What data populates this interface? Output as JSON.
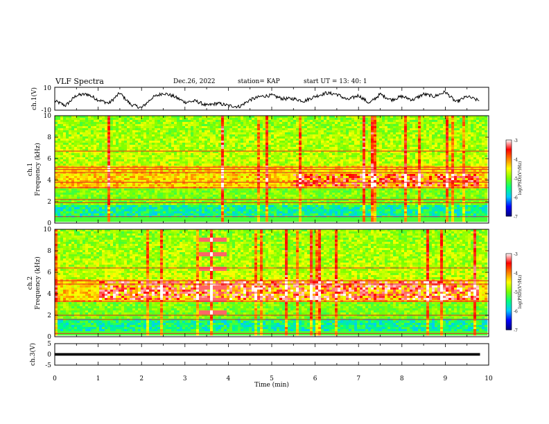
{
  "header": {
    "title": "VLF Spectra",
    "date": "Dec.26, 2022",
    "station": "station= KAP",
    "start": "start  UT  =   13: 40: 1"
  },
  "colors": {
    "spectrum_stops": [
      "#000080",
      "#0000ff",
      "#00c8ff",
      "#00ff80",
      "#7cff00",
      "#ffff00",
      "#ff8000",
      "#ff0000",
      "#ffffff"
    ],
    "trace": "#000000"
  },
  "chart_data": [
    {
      "id": "ch1-waveform",
      "type": "line",
      "ylabel": "ch.1(V)",
      "ylim": [
        -10,
        10
      ],
      "yticks": [
        "10",
        "-10"
      ],
      "xlim": [
        0,
        10
      ],
      "series": [
        {
          "x": [
            0,
            0.25,
            0.5,
            0.75,
            1,
            1.25,
            1.5,
            1.75,
            2,
            2.25,
            2.5,
            2.75,
            3,
            3.25,
            3.5,
            3.75,
            4,
            4.25,
            4.5,
            4.75,
            5,
            5.25,
            5.5,
            5.75,
            6,
            6.25,
            6.5,
            6.75,
            7,
            7.25,
            7.5,
            7.75,
            8,
            8.25,
            8.5,
            8.75,
            9,
            9.25,
            9.5,
            9.8
          ],
          "y": [
            -2,
            -6,
            3,
            4,
            -1,
            -4,
            5,
            -5,
            -8,
            1,
            5,
            2,
            -3,
            -2,
            -6,
            -4,
            -6,
            -7,
            -1,
            2,
            3,
            0,
            0,
            -2,
            2,
            5,
            4,
            -1,
            3,
            -4,
            4,
            -1,
            2,
            -1,
            4,
            2,
            6,
            -3,
            2,
            -2
          ]
        }
      ]
    },
    {
      "id": "ch1-spectrogram",
      "type": "heatmap",
      "ylabel": "ch.1\nFrequency (kHz)",
      "ylim": [
        0,
        10
      ],
      "yticks": [
        "0",
        "2",
        "4",
        "6",
        "8",
        "10"
      ],
      "xlim": [
        0,
        10
      ],
      "colorbar": {
        "label": "log(PSD)(V²/Hz)",
        "range": [
          -7,
          -3
        ],
        "ticks": [
          "-3",
          "-4",
          "-5",
          "-6",
          "-7"
        ]
      },
      "lines_khz": [
        6.7,
        5.2,
        5.0,
        4.7,
        3.8,
        3.3,
        2.2,
        1.9,
        0.6
      ],
      "band": {
        "from_khz": 3.4,
        "to_khz": 4.6,
        "from_min": 5.5,
        "to_min": 9.8,
        "level": -3.6
      }
    },
    {
      "id": "ch2-spectrogram",
      "type": "heatmap",
      "ylabel": "ch.2\nFrequency (kHz)",
      "ylim": [
        0,
        10
      ],
      "yticks": [
        "0",
        "2",
        "4",
        "6",
        "8",
        "10"
      ],
      "xlim": [
        0,
        10
      ],
      "colorbar": {
        "label": "log(PSD)(V²/Hz)",
        "range": [
          -7,
          -3
        ],
        "ticks": [
          "-3",
          "-4",
          "-5",
          "-6",
          "-7"
        ]
      },
      "lines_khz": [
        6.4,
        5.2,
        4.9,
        3.3,
        2.0,
        1.6,
        0.3
      ],
      "band": {
        "from_khz": 3.3,
        "to_khz": 5.1,
        "from_min": 1.0,
        "to_min": 9.8,
        "level": -3.5
      },
      "burst": {
        "from_min": 3.35,
        "to_min": 3.95,
        "tones_khz": [
          9.0,
          7.6,
          6.2,
          4.5,
          3.4,
          2.2
        ]
      }
    },
    {
      "id": "ch3-waveform",
      "type": "line",
      "ylabel": "ch.3(V)",
      "ylim": [
        -5,
        5
      ],
      "yticks": [
        "5",
        "0",
        "-5"
      ],
      "xlim": [
        0,
        10
      ],
      "series": [
        {
          "x": [
            0,
            9.8
          ],
          "y": [
            0,
            0
          ]
        }
      ]
    }
  ],
  "xaxis": {
    "label": "Time (min)",
    "ticks": [
      "0",
      "1",
      "2",
      "3",
      "4",
      "5",
      "6",
      "7",
      "8",
      "9",
      "10"
    ]
  }
}
